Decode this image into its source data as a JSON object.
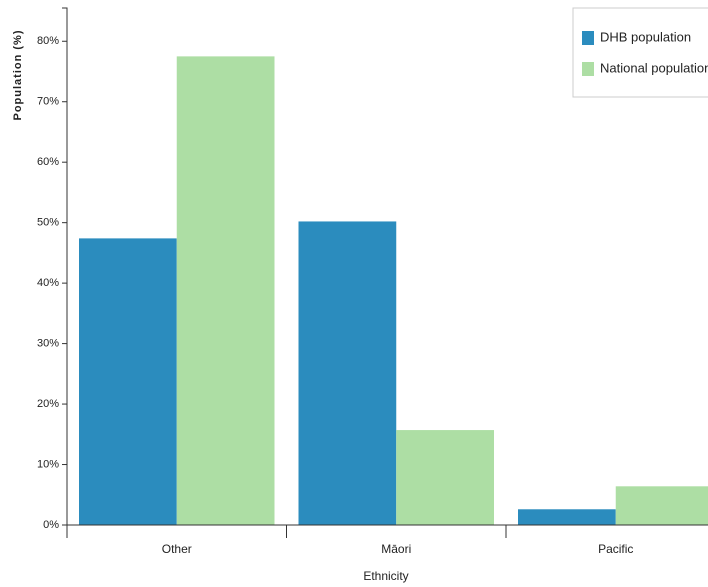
{
  "chart_data": {
    "type": "bar",
    "y_label": "Population (%)",
    "x_label": "Ethnicity",
    "categories": [
      "Other",
      "Māori",
      "Pacific"
    ],
    "series": [
      {
        "name": "DHB population",
        "color": "#2b8cbe",
        "values": [
          47.4,
          50.2,
          2.6
        ]
      },
      {
        "name": "National population",
        "color": "#addea4",
        "values": [
          77.5,
          15.7,
          6.4
        ]
      }
    ],
    "ylim": [
      0,
      85.5
    ],
    "yticks": [
      {
        "value": 0,
        "label": "0%"
      },
      {
        "value": 10,
        "label": "10%"
      },
      {
        "value": 20,
        "label": "20%"
      },
      {
        "value": 30,
        "label": "30%"
      },
      {
        "value": 40,
        "label": "40%"
      },
      {
        "value": 50,
        "label": "50%"
      },
      {
        "value": 60,
        "label": "60%"
      },
      {
        "value": 70,
        "label": "70%"
      },
      {
        "value": 80,
        "label": "80%"
      }
    ],
    "legend": "top-right"
  }
}
